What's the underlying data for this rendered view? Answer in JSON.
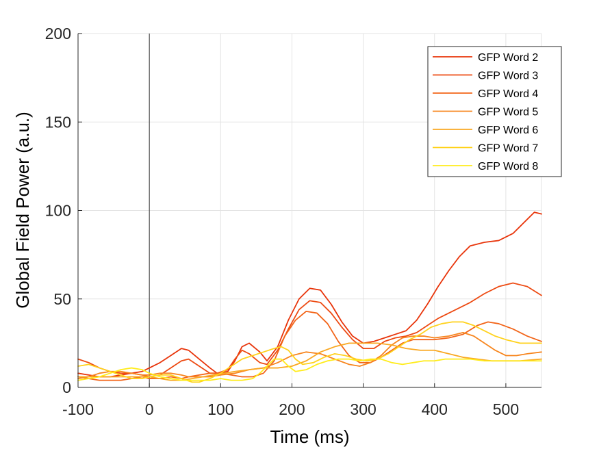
{
  "chart_data": {
    "type": "line",
    "xlabel": "Time (ms)",
    "ylabel": "Global Field Power (a.u.)",
    "xlim": [
      -100,
      550
    ],
    "ylim": [
      0,
      200
    ],
    "x_ticks": [
      -100,
      0,
      100,
      200,
      300,
      400,
      500
    ],
    "y_ticks": [
      0,
      50,
      100,
      150,
      200
    ],
    "grid": true,
    "legend_position": "top-right",
    "vertical_reference_line_x": 0,
    "series": [
      {
        "name": "GFP Word 2",
        "color": "#e8340a",
        "points": [
          [
            -100,
            8
          ],
          [
            -85,
            7
          ],
          [
            -70,
            6
          ],
          [
            -55,
            6
          ],
          [
            -40,
            7
          ],
          [
            -25,
            8
          ],
          [
            -10,
            9
          ],
          [
            0,
            11
          ],
          [
            15,
            14
          ],
          [
            30,
            18
          ],
          [
            45,
            22
          ],
          [
            55,
            21
          ],
          [
            70,
            16
          ],
          [
            85,
            11
          ],
          [
            95,
            8
          ],
          [
            110,
            9
          ],
          [
            120,
            15
          ],
          [
            130,
            23
          ],
          [
            140,
            25
          ],
          [
            155,
            20
          ],
          [
            165,
            15
          ],
          [
            180,
            23
          ],
          [
            195,
            38
          ],
          [
            210,
            50
          ],
          [
            225,
            56
          ],
          [
            240,
            55
          ],
          [
            255,
            47
          ],
          [
            270,
            37
          ],
          [
            285,
            29
          ],
          [
            300,
            25
          ],
          [
            315,
            26
          ],
          [
            330,
            28
          ],
          [
            345,
            30
          ],
          [
            360,
            32
          ],
          [
            375,
            38
          ],
          [
            390,
            47
          ],
          [
            405,
            57
          ],
          [
            420,
            66
          ],
          [
            435,
            74
          ],
          [
            450,
            80
          ],
          [
            470,
            82
          ],
          [
            490,
            83
          ],
          [
            510,
            87
          ],
          [
            530,
            95
          ],
          [
            540,
            99
          ],
          [
            550,
            98
          ]
        ]
      },
      {
        "name": "GFP Word 3",
        "color": "#ed4a12",
        "points": [
          [
            -100,
            16
          ],
          [
            -85,
            14
          ],
          [
            -70,
            11
          ],
          [
            -55,
            9
          ],
          [
            -40,
            8
          ],
          [
            -25,
            8
          ],
          [
            -10,
            7
          ],
          [
            0,
            6
          ],
          [
            15,
            7
          ],
          [
            30,
            11
          ],
          [
            45,
            15
          ],
          [
            55,
            16
          ],
          [
            70,
            12
          ],
          [
            85,
            8
          ],
          [
            95,
            8
          ],
          [
            110,
            10
          ],
          [
            120,
            16
          ],
          [
            130,
            21
          ],
          [
            140,
            19
          ],
          [
            155,
            14
          ],
          [
            165,
            13
          ],
          [
            180,
            21
          ],
          [
            195,
            33
          ],
          [
            210,
            44
          ],
          [
            225,
            49
          ],
          [
            240,
            48
          ],
          [
            255,
            42
          ],
          [
            270,
            34
          ],
          [
            285,
            27
          ],
          [
            300,
            22
          ],
          [
            315,
            22
          ],
          [
            330,
            26
          ],
          [
            345,
            28
          ],
          [
            360,
            29
          ],
          [
            375,
            31
          ],
          [
            390,
            35
          ],
          [
            405,
            39
          ],
          [
            420,
            42
          ],
          [
            435,
            45
          ],
          [
            450,
            48
          ],
          [
            470,
            53
          ],
          [
            490,
            57
          ],
          [
            510,
            59
          ],
          [
            530,
            57
          ],
          [
            550,
            52
          ]
        ]
      },
      {
        "name": "GFP Word 4",
        "color": "#f26418",
        "points": [
          [
            -100,
            6
          ],
          [
            -85,
            5
          ],
          [
            -70,
            4
          ],
          [
            -55,
            4
          ],
          [
            -40,
            4
          ],
          [
            -25,
            5
          ],
          [
            -10,
            6
          ],
          [
            0,
            5
          ],
          [
            15,
            5
          ],
          [
            30,
            6
          ],
          [
            45,
            5
          ],
          [
            55,
            6
          ],
          [
            70,
            7
          ],
          [
            85,
            8
          ],
          [
            100,
            8
          ],
          [
            115,
            7
          ],
          [
            130,
            6
          ],
          [
            145,
            6
          ],
          [
            160,
            8
          ],
          [
            175,
            15
          ],
          [
            190,
            29
          ],
          [
            205,
            38
          ],
          [
            220,
            43
          ],
          [
            235,
            42
          ],
          [
            250,
            36
          ],
          [
            265,
            26
          ],
          [
            280,
            18
          ],
          [
            295,
            14
          ],
          [
            310,
            14
          ],
          [
            325,
            17
          ],
          [
            340,
            21
          ],
          [
            355,
            25
          ],
          [
            370,
            27
          ],
          [
            385,
            27
          ],
          [
            400,
            27
          ],
          [
            420,
            28
          ],
          [
            440,
            30
          ],
          [
            460,
            35
          ],
          [
            475,
            37
          ],
          [
            490,
            36
          ],
          [
            510,
            33
          ],
          [
            530,
            29
          ],
          [
            550,
            26
          ]
        ]
      },
      {
        "name": "GFP Word 5",
        "color": "#f7851d",
        "points": [
          [
            -100,
            5
          ],
          [
            -85,
            6
          ],
          [
            -70,
            8
          ],
          [
            -55,
            9
          ],
          [
            -40,
            9
          ],
          [
            -25,
            8
          ],
          [
            -10,
            7
          ],
          [
            0,
            7
          ],
          [
            15,
            8
          ],
          [
            30,
            8
          ],
          [
            45,
            7
          ],
          [
            55,
            6
          ],
          [
            70,
            6
          ],
          [
            85,
            6
          ],
          [
            100,
            7
          ],
          [
            120,
            8
          ],
          [
            140,
            10
          ],
          [
            160,
            11
          ],
          [
            180,
            14
          ],
          [
            200,
            18
          ],
          [
            220,
            20
          ],
          [
            240,
            19
          ],
          [
            260,
            16
          ],
          [
            280,
            13
          ],
          [
            295,
            12
          ],
          [
            310,
            14
          ],
          [
            325,
            18
          ],
          [
            340,
            24
          ],
          [
            355,
            28
          ],
          [
            370,
            29
          ],
          [
            385,
            29
          ],
          [
            400,
            28
          ],
          [
            420,
            29
          ],
          [
            440,
            31
          ],
          [
            455,
            29
          ],
          [
            470,
            25
          ],
          [
            485,
            21
          ],
          [
            500,
            18
          ],
          [
            515,
            18
          ],
          [
            530,
            19
          ],
          [
            550,
            20
          ]
        ]
      },
      {
        "name": "GFP Word 6",
        "color": "#f9a822",
        "points": [
          [
            -100,
            6
          ],
          [
            -85,
            6
          ],
          [
            -70,
            6
          ],
          [
            -55,
            6
          ],
          [
            -40,
            6
          ],
          [
            -25,
            6
          ],
          [
            -10,
            6
          ],
          [
            0,
            6
          ],
          [
            15,
            5
          ],
          [
            30,
            4
          ],
          [
            45,
            4
          ],
          [
            60,
            5
          ],
          [
            75,
            6
          ],
          [
            90,
            7
          ],
          [
            105,
            8
          ],
          [
            120,
            9
          ],
          [
            140,
            10
          ],
          [
            160,
            11
          ],
          [
            180,
            11
          ],
          [
            200,
            12
          ],
          [
            220,
            15
          ],
          [
            240,
            20
          ],
          [
            260,
            23
          ],
          [
            280,
            25
          ],
          [
            300,
            25
          ],
          [
            320,
            25
          ],
          [
            340,
            24
          ],
          [
            360,
            22
          ],
          [
            380,
            21
          ],
          [
            400,
            21
          ],
          [
            420,
            19
          ],
          [
            440,
            17
          ],
          [
            460,
            16
          ],
          [
            480,
            15
          ],
          [
            500,
            15
          ],
          [
            520,
            15
          ],
          [
            550,
            16
          ]
        ]
      },
      {
        "name": "GFP Word 7",
        "color": "#ffd21c",
        "points": [
          [
            -100,
            12
          ],
          [
            -85,
            13
          ],
          [
            -70,
            11
          ],
          [
            -55,
            9
          ],
          [
            -40,
            7
          ],
          [
            -25,
            5
          ],
          [
            -10,
            5
          ],
          [
            0,
            6
          ],
          [
            15,
            7
          ],
          [
            30,
            7
          ],
          [
            45,
            5
          ],
          [
            60,
            3
          ],
          [
            70,
            3
          ],
          [
            85,
            5
          ],
          [
            100,
            8
          ],
          [
            115,
            12
          ],
          [
            130,
            16
          ],
          [
            145,
            18
          ],
          [
            160,
            20
          ],
          [
            175,
            22
          ],
          [
            185,
            23
          ],
          [
            195,
            21
          ],
          [
            205,
            16
          ],
          [
            215,
            13
          ],
          [
            230,
            14
          ],
          [
            245,
            17
          ],
          [
            260,
            19
          ],
          [
            275,
            18
          ],
          [
            290,
            16
          ],
          [
            305,
            15
          ],
          [
            320,
            16
          ],
          [
            335,
            19
          ],
          [
            350,
            23
          ],
          [
            365,
            27
          ],
          [
            380,
            30
          ],
          [
            395,
            34
          ],
          [
            410,
            36
          ],
          [
            425,
            37
          ],
          [
            440,
            37
          ],
          [
            455,
            35
          ],
          [
            470,
            32
          ],
          [
            485,
            29
          ],
          [
            500,
            27
          ],
          [
            520,
            25
          ],
          [
            550,
            25
          ]
        ]
      },
      {
        "name": "GFP Word 8",
        "color": "#ffec1a",
        "points": [
          [
            -100,
            4
          ],
          [
            -85,
            5
          ],
          [
            -70,
            6
          ],
          [
            -55,
            8
          ],
          [
            -40,
            10
          ],
          [
            -25,
            11
          ],
          [
            -10,
            10
          ],
          [
            0,
            8
          ],
          [
            15,
            6
          ],
          [
            30,
            5
          ],
          [
            45,
            4
          ],
          [
            55,
            4
          ],
          [
            70,
            4
          ],
          [
            85,
            4
          ],
          [
            100,
            5
          ],
          [
            115,
            4
          ],
          [
            130,
            4
          ],
          [
            145,
            5
          ],
          [
            155,
            8
          ],
          [
            165,
            12
          ],
          [
            175,
            16
          ],
          [
            185,
            16
          ],
          [
            195,
            12
          ],
          [
            205,
            9
          ],
          [
            220,
            10
          ],
          [
            235,
            13
          ],
          [
            250,
            15
          ],
          [
            265,
            16
          ],
          [
            280,
            16
          ],
          [
            295,
            15
          ],
          [
            310,
            16
          ],
          [
            325,
            16
          ],
          [
            340,
            14
          ],
          [
            355,
            13
          ],
          [
            370,
            14
          ],
          [
            385,
            15
          ],
          [
            400,
            15
          ],
          [
            415,
            16
          ],
          [
            430,
            16
          ],
          [
            450,
            16
          ],
          [
            470,
            15
          ],
          [
            490,
            15
          ],
          [
            510,
            15
          ],
          [
            530,
            15
          ],
          [
            550,
            15
          ]
        ]
      }
    ]
  }
}
